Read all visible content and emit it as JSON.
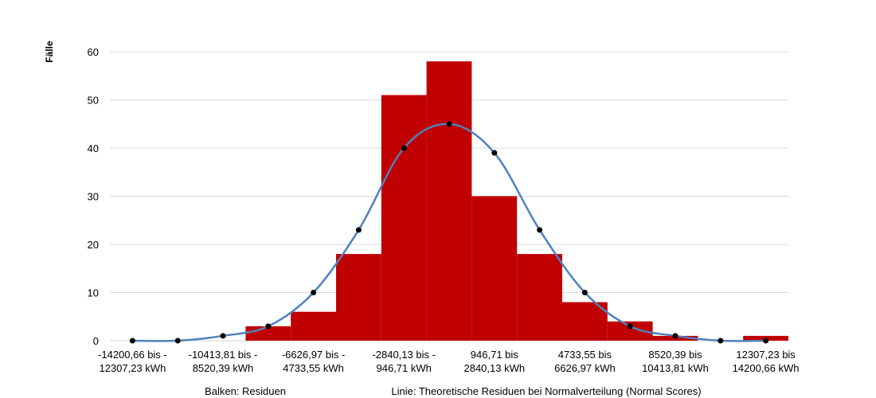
{
  "chart_data": {
    "type": "bar",
    "ylabel": "Fälle",
    "ylim": [
      0,
      60
    ],
    "yticks": [
      0,
      10,
      20,
      30,
      40,
      50,
      60
    ],
    "grid": true,
    "bar_color": "#C00000",
    "line_color": "#4F81BD",
    "bins": 15,
    "xtick_labels": [
      [
        "-14200,66 bis -",
        "12307,23 kWh"
      ],
      [
        "-10413,81 bis -",
        "8520,39 kWh"
      ],
      [
        "-6626,97 bis -",
        "4733,55 kWh"
      ],
      [
        "-2840,13 bis -",
        "946,71 kWh"
      ],
      [
        "946,71 bis",
        "2840,13 kWh"
      ],
      [
        "4733,55 bis",
        "6626,97 kWh"
      ],
      [
        "8520,39 bis",
        "10413,81 kWh"
      ],
      [
        "12307,23 bis",
        "14200,66 kWh"
      ]
    ],
    "series": [
      {
        "name": "Residuen",
        "type": "bar",
        "values": [
          0,
          0,
          0,
          3,
          6,
          18,
          51,
          58,
          30,
          18,
          8,
          4,
          1,
          0,
          1
        ]
      },
      {
        "name": "Theoretische Residuen bei Normalverteilung (Normal Scores)",
        "type": "line",
        "values": [
          0,
          0,
          1,
          3,
          10,
          23,
          40,
          45,
          39,
          23,
          10,
          3,
          1,
          0,
          0
        ]
      }
    ],
    "legend": {
      "bars": "Balken: Residuen",
      "line": "Linie: Theoretische Residuen bei Normalverteilung (Normal Scores)"
    }
  }
}
